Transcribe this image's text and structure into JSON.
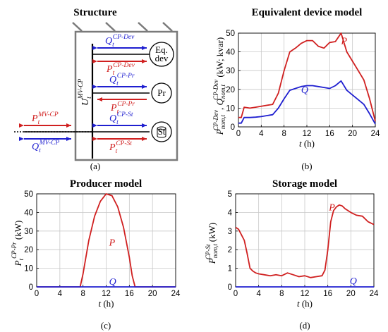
{
  "panel_a": {
    "title": "Structure",
    "caption": "(a)",
    "node_voltage": {
      "main": "U",
      "sub": "t",
      "sup": "MV-CP"
    },
    "flows": [
      {
        "name": "Q",
        "sub": "t",
        "sup": "CP-Dev",
        "color": "#1f1fd0"
      },
      {
        "name": "P",
        "sub": "t",
        "sup": "CP-Dev",
        "color": "#d02020"
      },
      {
        "name": "Q",
        "sub": "t",
        "sup": "CP-Pr",
        "color": "#1f1fd0"
      },
      {
        "name": "P",
        "sub": "t",
        "sup": "CP-Pr",
        "color": "#d02020"
      },
      {
        "name": "Q",
        "sub": "t",
        "sup": "CP-St",
        "color": "#1f1fd0"
      },
      {
        "name": "P",
        "sub": "t",
        "sup": "CP-St",
        "color": "#d02020"
      },
      {
        "name": "P",
        "sub": "t",
        "sup": "MV-CP",
        "color": "#d02020"
      },
      {
        "name": "Q",
        "sub": "t",
        "sup": "MV-CP",
        "color": "#1f1fd0"
      }
    ],
    "devices": [
      {
        "label_line1": "Eq.",
        "label_line2": "dev"
      },
      {
        "label_line1": "Pr",
        "label_line2": ""
      },
      {
        "label_line1": "St",
        "label_line2": ""
      }
    ]
  },
  "chart_data": [
    {
      "id": "b",
      "type": "line",
      "title": "Equivalent device model",
      "caption": "(b)",
      "xlabel": "t (h)",
      "ylabel": "P_nom,t^CP-Dev, Q_nom,t^CP-Dev (kW; kvar)",
      "xlim": [
        0,
        24
      ],
      "ylim": [
        0,
        50
      ],
      "xticks": [
        0,
        4,
        8,
        12,
        16,
        20,
        24
      ],
      "yticks": [
        0,
        10,
        20,
        30,
        40,
        50
      ],
      "grid": true,
      "series": [
        {
          "name": "P",
          "color": "#d02020",
          "x": [
            0,
            0.5,
            1,
            2,
            3,
            4,
            5,
            6,
            7,
            8,
            9,
            10,
            11,
            12,
            13,
            14,
            15,
            16,
            17,
            18,
            19,
            20,
            21,
            22,
            23,
            24
          ],
          "y": [
            5,
            5,
            10.5,
            10,
            10.5,
            11,
            11.5,
            12,
            18,
            30,
            40,
            42,
            44.5,
            46,
            46,
            43,
            42,
            45,
            45.5,
            50,
            40,
            35,
            30,
            25,
            15,
            3
          ]
        },
        {
          "name": "Q",
          "color": "#1f1fd0",
          "x": [
            0,
            0.5,
            1,
            2,
            3,
            4,
            5,
            6,
            7,
            8,
            9,
            10,
            11,
            12,
            13,
            14,
            15,
            16,
            17,
            18,
            19,
            20,
            21,
            22,
            23,
            24
          ],
          "y": [
            2,
            2,
            5,
            5,
            5.2,
            5.5,
            6,
            6.5,
            10,
            15,
            19.5,
            20.5,
            21.5,
            22,
            22,
            21.5,
            21,
            20.5,
            22,
            24.5,
            19.5,
            17,
            14.5,
            12,
            7,
            1.5
          ]
        }
      ]
    },
    {
      "id": "c",
      "type": "line",
      "title": "Producer model",
      "caption": "(c)",
      "xlabel": "t (h)",
      "ylabel": "P_t^CP-Pr (kW)",
      "xlim": [
        0,
        24
      ],
      "ylim": [
        0,
        50
      ],
      "xticks": [
        0,
        4,
        8,
        12,
        16,
        20,
        24
      ],
      "yticks": [
        0,
        10,
        20,
        30,
        40,
        50
      ],
      "grid": true,
      "series": [
        {
          "name": "P",
          "color": "#d02020",
          "x": [
            0,
            7.5,
            8,
            9,
            10,
            11,
            12,
            13,
            14,
            15,
            16,
            16.5,
            17,
            24
          ],
          "y": [
            0,
            0,
            7,
            25,
            38,
            46,
            50,
            49,
            43,
            32,
            16,
            6,
            0,
            0
          ]
        },
        {
          "name": "Q",
          "color": "#1f1fd0",
          "x": [
            0,
            24
          ],
          "y": [
            0,
            0
          ]
        }
      ]
    },
    {
      "id": "d",
      "type": "line",
      "title": "Storage model",
      "caption": "(d)",
      "xlabel": "t (h)",
      "ylabel": "P_nom,t^CP-St (kW)",
      "xlim": [
        0,
        24
      ],
      "ylim": [
        0,
        5
      ],
      "xticks": [
        0,
        4,
        8,
        12,
        16,
        20,
        24
      ],
      "yticks": [
        0,
        1,
        2,
        3,
        4,
        5
      ],
      "grid": true,
      "series": [
        {
          "name": "P",
          "color": "#d02020",
          "x": [
            0,
            0.5,
            1,
            1.5,
            2,
            2.5,
            3,
            3.5,
            4,
            5,
            6,
            7,
            8,
            9,
            10,
            11,
            12,
            13,
            14,
            15,
            15.5,
            16,
            16.5,
            17,
            17.5,
            18,
            18.5,
            19,
            20,
            21,
            22,
            23,
            24
          ],
          "y": [
            3.2,
            3.1,
            2.8,
            2.5,
            1.8,
            1.0,
            0.85,
            0.75,
            0.7,
            0.65,
            0.6,
            0.65,
            0.6,
            0.75,
            0.65,
            0.55,
            0.6,
            0.5,
            0.55,
            0.6,
            0.9,
            2.0,
            3.5,
            4.1,
            4.3,
            4.4,
            4.35,
            4.2,
            4.0,
            3.85,
            3.8,
            3.5,
            3.35
          ]
        },
        {
          "name": "Q",
          "color": "#1f1fd0",
          "x": [
            0,
            24
          ],
          "y": [
            0,
            0
          ]
        }
      ]
    }
  ]
}
